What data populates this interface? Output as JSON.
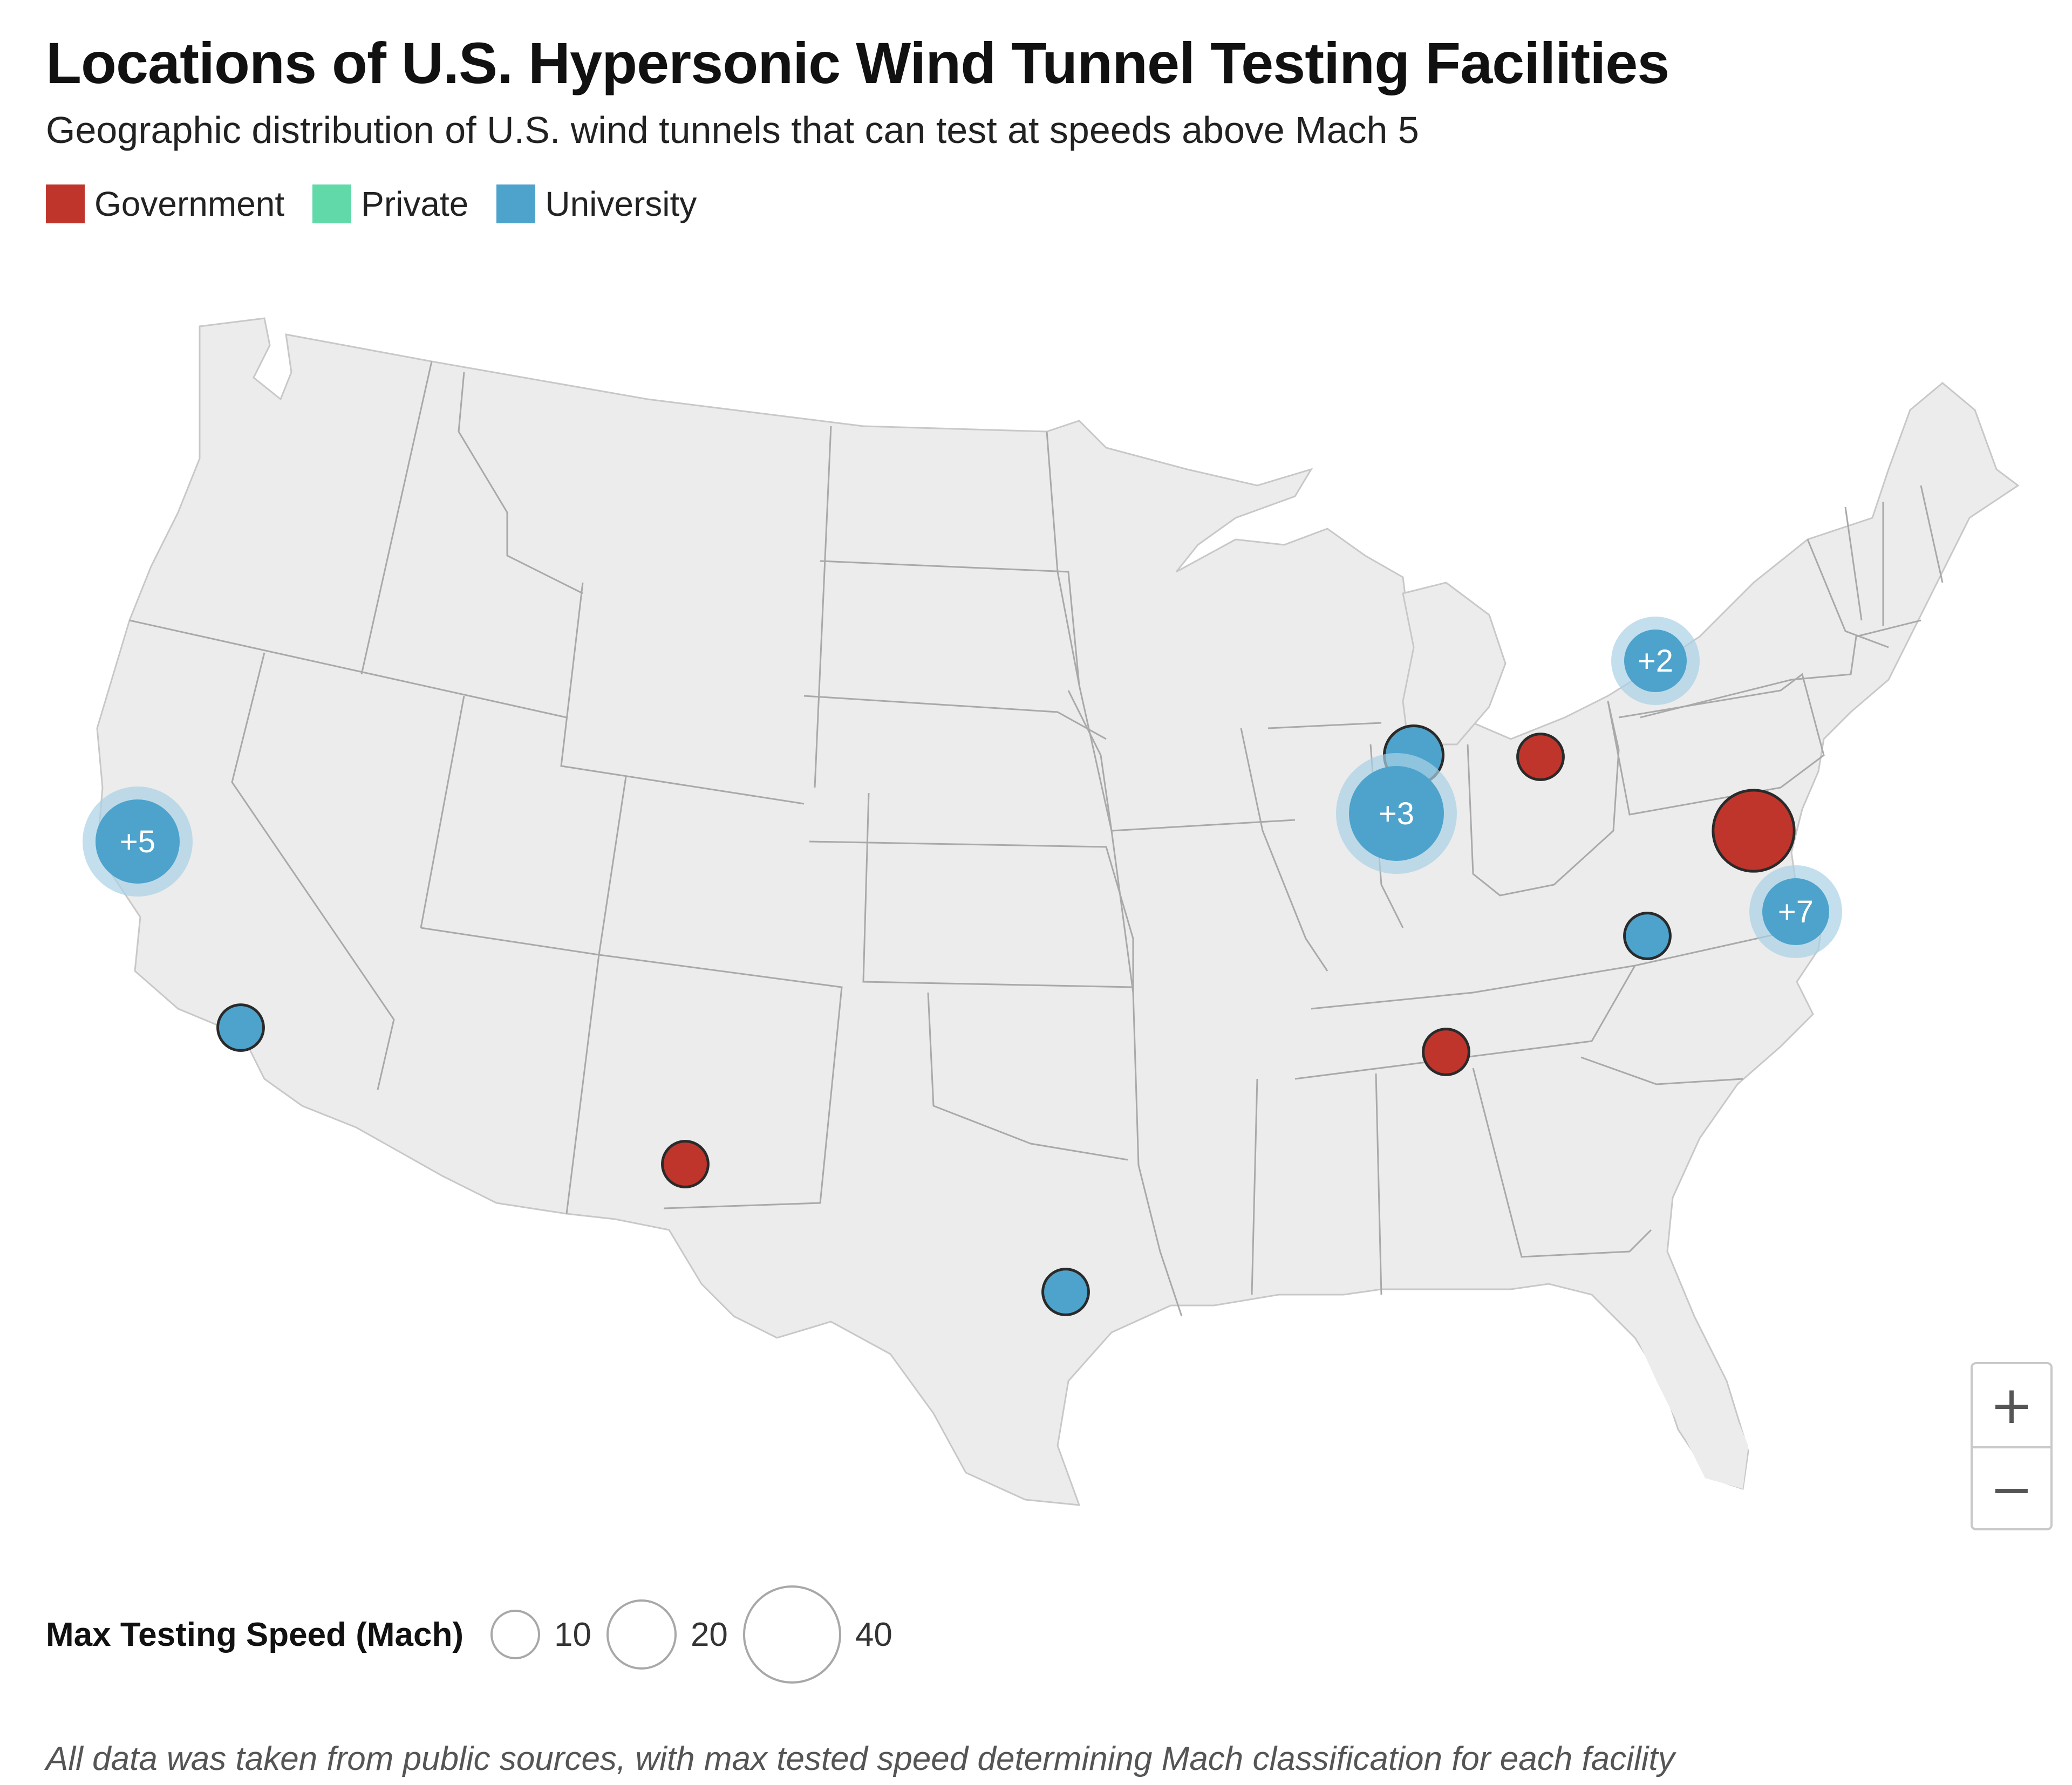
{
  "title": "Locations of U.S. Hypersonic Wind Tunnel Testing Facilities",
  "subtitle": "Geographic distribution of U.S. wind tunnels that can test at speeds above Mach 5",
  "legend": [
    {
      "label": "Government",
      "color": "#c0352b"
    },
    {
      "label": "Private",
      "color": "#62d9a8"
    },
    {
      "label": "University",
      "color": "#4da3cc"
    }
  ],
  "colors": {
    "land": "#ececec",
    "border": "#a9a9a9",
    "marker_stroke": "#2a2a2a",
    "cluster_halo": "#a9d1e6"
  },
  "clusters": [
    {
      "label": "+5",
      "type": "University"
    },
    {
      "label": "+3",
      "type": "University"
    },
    {
      "label": "+2",
      "type": "University"
    },
    {
      "label": "+7",
      "type": "University"
    }
  ],
  "facilities": [
    {
      "type": "University",
      "size_class": 10
    },
    {
      "type": "University",
      "size_class": 10
    },
    {
      "type": "University",
      "size_class": 20
    },
    {
      "type": "University",
      "size_class": 10
    },
    {
      "type": "Government",
      "size_class": 10
    },
    {
      "type": "Government",
      "size_class": 10
    },
    {
      "type": "Government",
      "size_class": 10
    },
    {
      "type": "Government",
      "size_class": 40
    }
  ],
  "zoom": {
    "in_label": "+",
    "out_label": "−"
  },
  "size_legend": {
    "title": "Max Testing Speed (Mach)",
    "items": [
      {
        "label": "10"
      },
      {
        "label": "20"
      },
      {
        "label": "40"
      }
    ]
  },
  "footnote": "All data was taken from public sources, with max tested speed determining Mach classification for each facility"
}
